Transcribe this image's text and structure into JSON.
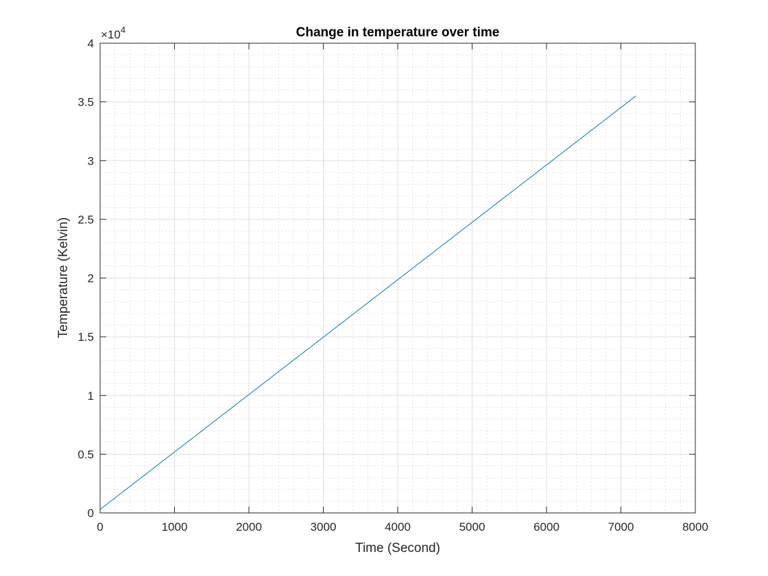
{
  "chart_data": {
    "type": "line",
    "title": "Change in temperature over time",
    "xlabel": "Time (Second)",
    "ylabel": "Temperature (Kelvin)",
    "xlim": [
      0,
      8000
    ],
    "ylim": [
      0,
      40000
    ],
    "x_ticks": [
      0,
      1000,
      2000,
      3000,
      4000,
      5000,
      6000,
      7000,
      8000
    ],
    "x_tick_labels": [
      "0",
      "1000",
      "2000",
      "3000",
      "4000",
      "5000",
      "6000",
      "7000",
      "8000"
    ],
    "y_ticks": [
      0,
      5000,
      10000,
      15000,
      20000,
      25000,
      30000,
      35000,
      40000
    ],
    "y_tick_labels": [
      "0",
      "0.5",
      "1",
      "1.5",
      "2",
      "2.5",
      "3",
      "3.5",
      "4"
    ],
    "y_exponent_label": {
      "base": "×10",
      "power": "4"
    },
    "grid": true,
    "minor_grid": true,
    "series": [
      {
        "color": "#0072BD",
        "x": [
          0,
          7200
        ],
        "y": [
          300,
          35500
        ]
      }
    ]
  },
  "colors": {
    "axis": "#262626",
    "major_grid": "#dfdfdf",
    "minor_grid": "#bdbdbd",
    "background": "#ffffff"
  }
}
